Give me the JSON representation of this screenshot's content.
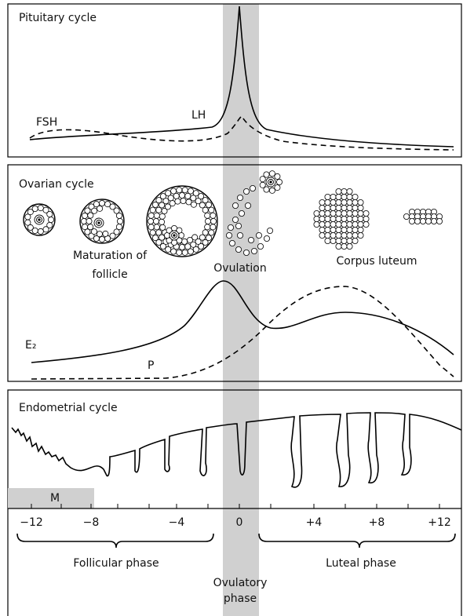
{
  "pituitary": {
    "title": "Pituitary cycle",
    "fsh_label": "FSH",
    "lh_label": "LH"
  },
  "ovarian": {
    "title": "Ovarian cycle",
    "maturation_label": [
      "Maturation of",
      "follicle"
    ],
    "ovulation_label": "Ovulation",
    "corpus_luteum_label": "Corpus luteum",
    "e2_label": "E₂",
    "p_label": "P"
  },
  "endometrial": {
    "title": "Endometrial cycle",
    "menstruation_label": "M",
    "axis_ticks": [
      "−12",
      "−8",
      "−4",
      "0",
      "+4",
      "+8",
      "+12"
    ],
    "follicular_phase": "Follicular phase",
    "luteal_phase": "Luteal phase",
    "ovulatory_phase": [
      "Ovulatory",
      "phase"
    ]
  }
}
